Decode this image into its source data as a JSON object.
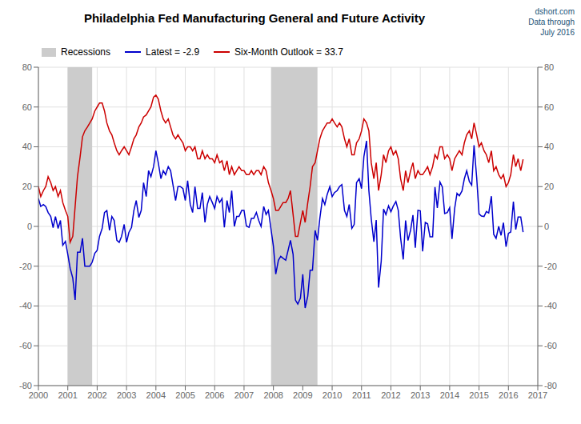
{
  "chart_data": {
    "type": "line",
    "title": "Philadelphia Fed Manufacturing General and Future Activity",
    "annotations": [
      {
        "text": "dshort.com\nData through\nJuly 2016",
        "color": "#1a5276"
      }
    ],
    "legend": "top",
    "grid": true,
    "shaded": {
      "name": "Recessions",
      "color": "#cccccc",
      "ranges": [
        [
          2001.0,
          2001.83
        ],
        [
          2007.92,
          2009.5
        ]
      ]
    },
    "xlim": [
      2000.0,
      2017.0
    ],
    "xticks": [
      2000,
      2001,
      2002,
      2003,
      2004,
      2005,
      2006,
      2007,
      2008,
      2009,
      2010,
      2011,
      2012,
      2013,
      2014,
      2015,
      2016,
      2017
    ],
    "ylim": [
      -80,
      80
    ],
    "yticks": [
      -80,
      -60,
      -40,
      -20,
      0,
      20,
      40,
      60,
      80
    ],
    "y2lim": [
      -80,
      80
    ],
    "y2ticks": [
      -80,
      -60,
      -40,
      -20,
      0,
      20,
      40,
      60,
      80
    ],
    "x": [
      2000.0,
      2000.08,
      2000.17,
      2000.25,
      2000.33,
      2000.42,
      2000.5,
      2000.58,
      2000.67,
      2000.75,
      2000.83,
      2000.92,
      2001.0,
      2001.08,
      2001.17,
      2001.25,
      2001.33,
      2001.42,
      2001.5,
      2001.58,
      2001.67,
      2001.75,
      2001.83,
      2001.92,
      2002.0,
      2002.08,
      2002.17,
      2002.25,
      2002.33,
      2002.42,
      2002.5,
      2002.58,
      2002.67,
      2002.75,
      2002.83,
      2002.92,
      2003.0,
      2003.08,
      2003.17,
      2003.25,
      2003.33,
      2003.42,
      2003.5,
      2003.58,
      2003.67,
      2003.75,
      2003.83,
      2003.92,
      2004.0,
      2004.08,
      2004.17,
      2004.25,
      2004.33,
      2004.42,
      2004.5,
      2004.58,
      2004.67,
      2004.75,
      2004.83,
      2004.92,
      2005.0,
      2005.08,
      2005.17,
      2005.25,
      2005.33,
      2005.42,
      2005.5,
      2005.58,
      2005.67,
      2005.75,
      2005.83,
      2005.92,
      2006.0,
      2006.08,
      2006.17,
      2006.25,
      2006.33,
      2006.42,
      2006.5,
      2006.58,
      2006.67,
      2006.75,
      2006.83,
      2006.92,
      2007.0,
      2007.08,
      2007.17,
      2007.25,
      2007.33,
      2007.42,
      2007.5,
      2007.58,
      2007.67,
      2007.75,
      2007.83,
      2007.92,
      2008.0,
      2008.08,
      2008.17,
      2008.25,
      2008.33,
      2008.42,
      2008.5,
      2008.58,
      2008.67,
      2008.75,
      2008.83,
      2008.92,
      2009.0,
      2009.08,
      2009.17,
      2009.25,
      2009.33,
      2009.42,
      2009.5,
      2009.58,
      2009.67,
      2009.75,
      2009.83,
      2009.92,
      2010.0,
      2010.08,
      2010.17,
      2010.25,
      2010.33,
      2010.42,
      2010.5,
      2010.58,
      2010.67,
      2010.75,
      2010.83,
      2010.92,
      2011.0,
      2011.08,
      2011.17,
      2011.25,
      2011.33,
      2011.42,
      2011.5,
      2011.58,
      2011.67,
      2011.75,
      2011.83,
      2011.92,
      2012.0,
      2012.08,
      2012.17,
      2012.25,
      2012.33,
      2012.42,
      2012.5,
      2012.58,
      2012.67,
      2012.75,
      2012.83,
      2012.92,
      2013.0,
      2013.08,
      2013.17,
      2013.25,
      2013.33,
      2013.42,
      2013.5,
      2013.58,
      2013.67,
      2013.75,
      2013.83,
      2013.92,
      2014.0,
      2014.08,
      2014.17,
      2014.25,
      2014.33,
      2014.42,
      2014.5,
      2014.58,
      2014.67,
      2014.75,
      2014.83,
      2014.92,
      2015.0,
      2015.08,
      2015.17,
      2015.25,
      2015.33,
      2015.42,
      2015.5,
      2015.58,
      2015.67,
      2015.75,
      2015.83,
      2015.92,
      2016.0,
      2016.08,
      2016.17,
      2016.25,
      2016.33,
      2016.42,
      2016.5
    ],
    "series": [
      {
        "name": "Latest = -2.9",
        "color": "#0000cc",
        "values": [
          14.0,
          10.0,
          11.0,
          10.0,
          7.0,
          5.0,
          -0.6,
          5.0,
          -1.0,
          3.0,
          -9.5,
          -7.5,
          -14.0,
          -21.0,
          -26.0,
          -37.0,
          -13.0,
          -13.0,
          -6.0,
          -20.0,
          -20.0,
          -20.0,
          -18.0,
          -13.5,
          -12.0,
          -5.0,
          -1.0,
          7.0,
          8.0,
          -2.0,
          5.0,
          3.0,
          -7.0,
          -8.0,
          -5.0,
          1.0,
          -8.0,
          -3.0,
          -0.5,
          8.0,
          13.0,
          4.5,
          8.0,
          22.0,
          15.0,
          28.0,
          25.0,
          30.0,
          38.0,
          32.0,
          24.0,
          28.0,
          26.0,
          30.0,
          28.0,
          21.0,
          13.0,
          20.0,
          20.0,
          19.0,
          13.0,
          23.0,
          11.0,
          7.0,
          20.0,
          9.0,
          9.0,
          17.0,
          2.0,
          11.0,
          15.0,
          12.0,
          9.0,
          15.0,
          12.0,
          14.0,
          -0.5,
          13.0,
          7.0,
          18.0,
          0.0,
          5.0,
          5.0,
          8.0,
          8.0,
          0.2,
          -0.5,
          4.0,
          4.0,
          7.0,
          3.0,
          0.0,
          10.0,
          6.0,
          8.0,
          -1.6,
          -10.0,
          -24.0,
          -17.0,
          -15.0,
          -16.0,
          -17.0,
          -12.0,
          -7.0,
          -14.0,
          -37.0,
          -39.0,
          -36.0,
          -24.0,
          -41.0,
          -35.0,
          -22.0,
          -22.0,
          -2.0,
          -7.0,
          4.0,
          14.0,
          11.0,
          16.0,
          20.0,
          15.0,
          17.0,
          18.0,
          20.0,
          21.0,
          8.0,
          5.0,
          11.0,
          -1.0,
          1.0,
          22.0,
          24.0,
          19.0,
          35.0,
          43.0,
          18.0,
          3.9,
          -7.7,
          3.2,
          -30.7,
          -17.5,
          8.7,
          5.9,
          10.3,
          7.3,
          10.2,
          12.5,
          8.1,
          -5.8,
          -16.6,
          3.0,
          -7.1,
          -1.9,
          5.7,
          -10.7,
          8.1,
          7.8,
          -12.5,
          2.0,
          1.3,
          -5.2,
          -5.2,
          19.8,
          9.3,
          22.3,
          19.8,
          6.5,
          7.0,
          9.4,
          -6.3,
          9.0,
          16.6,
          15.4,
          17.8,
          23.9,
          28.0,
          22.5,
          20.7,
          40.8,
          24.5,
          6.3,
          5.2,
          5.0,
          7.5,
          6.7,
          15.2,
          -4.0,
          -6.0,
          0.0,
          -4.5,
          1.9,
          -10.2,
          -3.5,
          -2.8,
          12.4,
          -1.6,
          4.7,
          4.7,
          -2.9
        ]
      },
      {
        "name": "Six-Month Outlook = 33.7",
        "color": "#cc0000",
        "values": [
          20.0,
          15.0,
          18.0,
          20.0,
          25.0,
          22.0,
          18.0,
          20.0,
          15.0,
          18.0,
          12.0,
          8.0,
          5.0,
          -8.0,
          -5.0,
          10.0,
          25.0,
          35.0,
          45.0,
          48.0,
          50.0,
          52.0,
          54.0,
          58.0,
          60.0,
          62.0,
          62.0,
          58.0,
          52.0,
          48.0,
          46.0,
          42.0,
          38.0,
          36.0,
          38.0,
          40.0,
          38.0,
          36.0,
          40.0,
          44.0,
          46.0,
          50.0,
          52.0,
          55.0,
          56.0,
          58.0,
          60.0,
          65.0,
          66.0,
          64.0,
          58.0,
          54.0,
          52.0,
          54.0,
          50.0,
          46.0,
          44.0,
          46.0,
          44.0,
          42.0,
          38.0,
          40.0,
          40.0,
          38.0,
          40.0,
          34.0,
          34.0,
          38.0,
          34.0,
          36.0,
          34.0,
          34.0,
          32.0,
          36.0,
          32.0,
          33.0,
          28.0,
          33.0,
          26.0,
          30.0,
          26.0,
          28.0,
          30.0,
          28.0,
          28.0,
          26.0,
          26.0,
          28.0,
          26.0,
          28.0,
          28.0,
          26.0,
          30.0,
          28.0,
          22.0,
          18.0,
          14.0,
          8.0,
          8.0,
          10.0,
          12.0,
          12.0,
          14.0,
          18.0,
          6.0,
          -5.0,
          -5.0,
          2.0,
          8.0,
          2.0,
          12.0,
          20.0,
          30.0,
          32.0,
          38.0,
          44.0,
          48.0,
          50.0,
          52.0,
          52.0,
          54.0,
          52.0,
          50.0,
          52.0,
          50.0,
          44.0,
          40.0,
          44.0,
          36.0,
          36.0,
          42.0,
          44.0,
          48.0,
          54.0,
          52.0,
          48.0,
          32.0,
          24.0,
          32.0,
          18.0,
          26.0,
          36.0,
          32.0,
          38.0,
          40.0,
          36.0,
          38.0,
          34.0,
          24.0,
          18.0,
          28.0,
          22.0,
          28.0,
          32.0,
          24.0,
          28.0,
          26.0,
          26.0,
          28.0,
          30.0,
          26.0,
          30.0,
          36.0,
          34.0,
          40.0,
          40.0,
          34.0,
          36.0,
          34.0,
          28.0,
          34.0,
          36.0,
          38.0,
          36.0,
          42.0,
          46.0,
          48.0,
          44.0,
          52.0,
          46.0,
          40.0,
          42.0,
          38.0,
          36.0,
          32.0,
          38.0,
          28.0,
          30.0,
          26.0,
          24.0,
          26.0,
          20.0,
          22.0,
          26.0,
          36.0,
          30.0,
          34.0,
          28.0,
          33.7
        ]
      }
    ]
  }
}
